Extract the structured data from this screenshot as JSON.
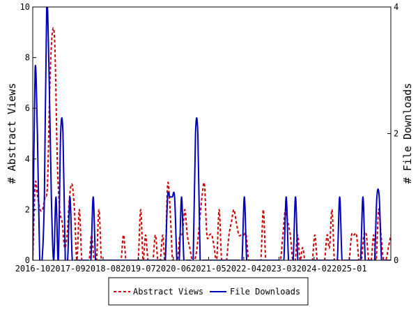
{
  "chart_data": {
    "type": "line",
    "xlabel": "",
    "ylabel_left": "# Abstract Views",
    "ylabel_right": "# File Downloads",
    "x_ticks": [
      "2016-10",
      "2017-09",
      "2018-08",
      "2019-07",
      "2020-06",
      "2021-05",
      "2022-04",
      "2023-03",
      "2024-02",
      "2025-01"
    ],
    "x_range": [
      0,
      112
    ],
    "y_left_ticks": [
      "0",
      "2",
      "4",
      "6",
      "8",
      "10"
    ],
    "y_right_ticks": [
      "0",
      "2",
      "4"
    ],
    "y_left_range": [
      0,
      10
    ],
    "y_right_range": [
      0,
      4
    ],
    "grid": false,
    "legend_position": "bottom",
    "series": [
      {
        "name": "Abstract Views",
        "axis": "left",
        "color": "#cc0000",
        "style": "dashed",
        "values": [
          0,
          3,
          2.5,
          2,
          2,
          2.5,
          3,
          7,
          9,
          8.5,
          4,
          2,
          1.5,
          0.5,
          1,
          2.5,
          3,
          2,
          0,
          2,
          0,
          0,
          0,
          0,
          1,
          0,
          0,
          2,
          0,
          0,
          0,
          0,
          0,
          0,
          0,
          0,
          0,
          1,
          0,
          0,
          0,
          0,
          0,
          0,
          2,
          0,
          1,
          0,
          0,
          0,
          1,
          0,
          0,
          1,
          0,
          3,
          2,
          0,
          0,
          0,
          1,
          1,
          2,
          1,
          0.5,
          0,
          0,
          0.5,
          1.5,
          2.5,
          3,
          1,
          1,
          1,
          0.5,
          0,
          2,
          0,
          0,
          0,
          1,
          1.5,
          2,
          1.5,
          1,
          1,
          1,
          1,
          0,
          0,
          0,
          0,
          0,
          0,
          2,
          0,
          0,
          0,
          0,
          0,
          0,
          0,
          1,
          2,
          1.5,
          1,
          0,
          0,
          1,
          0,
          0.5,
          0,
          0,
          0,
          0,
          1,
          0,
          0,
          0,
          0,
          1,
          0.5,
          2,
          0,
          0,
          0,
          0,
          0,
          0,
          0,
          1,
          1,
          1,
          0,
          0,
          1,
          1,
          0,
          0,
          1,
          0,
          2,
          1,
          0,
          0,
          0.5,
          1
        ]
      },
      {
        "name": "File Downloads",
        "axis": "right",
        "color": "#0000bb",
        "style": "solid",
        "values": [
          0,
          3,
          2,
          0,
          0,
          1,
          4,
          3,
          1,
          0,
          1,
          0,
          2,
          2,
          0,
          0,
          1,
          0,
          0,
          0,
          0,
          0,
          0,
          0,
          0,
          0,
          1,
          0,
          0,
          0,
          0,
          0,
          0,
          0,
          0,
          0,
          0,
          0,
          0,
          0,
          0,
          0,
          0,
          0,
          0,
          0,
          0,
          0,
          0,
          0,
          0,
          0,
          0,
          0,
          0,
          0,
          0,
          0,
          1,
          1,
          1,
          1,
          0,
          0,
          1,
          0,
          0,
          0,
          0,
          0,
          2,
          2,
          0,
          0,
          0,
          0,
          0,
          0,
          0,
          0,
          0,
          0,
          0,
          0,
          0,
          0,
          0,
          0,
          0,
          0,
          0,
          1,
          0,
          0,
          0,
          0,
          0,
          0,
          0,
          0,
          0,
          0,
          0,
          0,
          0,
          0,
          0,
          0,
          0,
          1,
          0,
          0,
          0,
          1,
          0,
          0,
          0,
          0,
          0,
          0,
          0,
          0,
          0,
          0,
          0,
          0,
          0,
          0,
          0,
          0,
          0,
          0,
          1,
          0,
          0,
          0,
          0,
          0,
          0,
          0,
          0,
          0,
          1,
          0,
          0,
          0,
          0,
          0,
          1,
          1,
          0,
          0,
          0,
          0,
          0
        ]
      }
    ]
  }
}
